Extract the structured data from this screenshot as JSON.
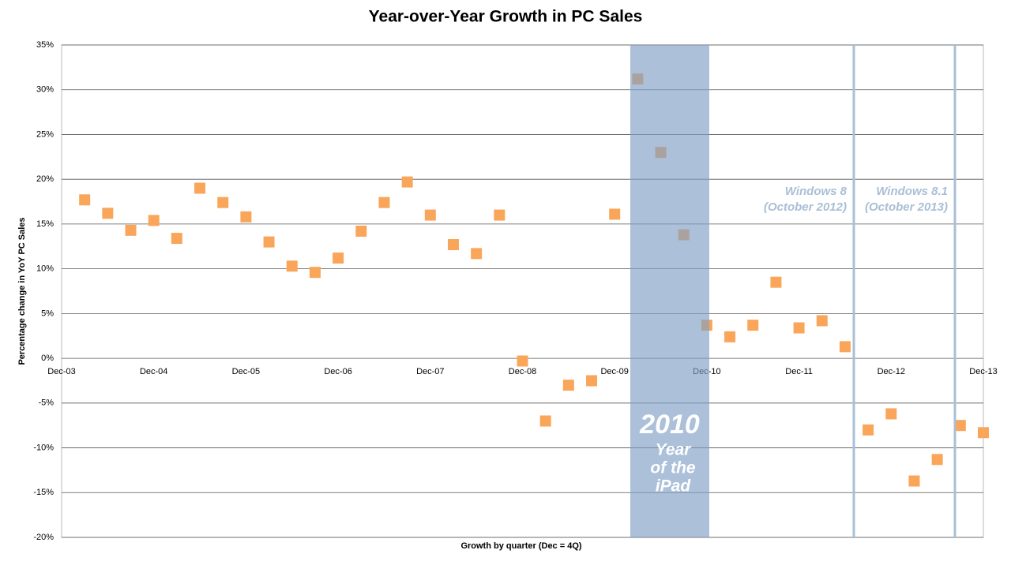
{
  "chart_data": {
    "type": "scatter",
    "title": "Year-over-Year Growth in PC Sales",
    "x_label": "Growth by quarter (Dec = 4Q)",
    "y_label": "Percentage change in YoY PC Sales",
    "categories": [
      "Dec-03",
      null,
      null,
      null,
      "Dec-04",
      null,
      null,
      null,
      "Dec-05",
      null,
      null,
      null,
      "Dec-06",
      null,
      null,
      null,
      "Dec-07",
      null,
      null,
      null,
      "Dec-08",
      null,
      null,
      null,
      "Dec-09",
      null,
      null,
      null,
      "Dec-10",
      null,
      null,
      null,
      "Dec-11",
      null,
      null,
      null,
      "Dec-12",
      null,
      null,
      null,
      "Dec-13"
    ],
    "values": [
      null,
      17.7,
      16.2,
      14.3,
      15.4,
      13.4,
      19.0,
      17.4,
      15.8,
      13.0,
      10.3,
      9.6,
      11.2,
      14.2,
      17.4,
      19.7,
      16.0,
      12.7,
      11.7,
      16.0,
      -0.3,
      -7.0,
      -3.0,
      -2.5,
      16.1,
      31.2,
      23.0,
      13.8,
      3.7,
      2.4,
      3.7,
      8.5,
      3.4,
      4.2,
      1.3,
      -8.0,
      -6.2,
      -13.7,
      -11.3,
      -7.5,
      -8.3
    ],
    "color": "#f9a65a",
    "ylim": [
      -20,
      35
    ],
    "yticks": [
      {
        "value": -20,
        "label": "-20%"
      },
      {
        "value": -15,
        "label": "-15%"
      },
      {
        "value": -10,
        "label": "-10%"
      },
      {
        "value": -5,
        "label": "-5%"
      },
      {
        "value": 0,
        "label": "0%"
      },
      {
        "value": 5,
        "label": "5%"
      },
      {
        "value": 10,
        "label": "10%"
      },
      {
        "value": 15,
        "label": "15%"
      },
      {
        "value": 20,
        "label": "20%"
      },
      {
        "value": 25,
        "label": "25%"
      },
      {
        "value": 30,
        "label": "30%"
      },
      {
        "value": 35,
        "label": "35%"
      }
    ],
    "grid": true,
    "annotations": {
      "ipad": [
        "2010",
        "Year",
        "of the",
        "iPad"
      ],
      "win8": [
        "Windows 8",
        "(October 2012)"
      ],
      "win81": [
        "Windows 8.1",
        "(October 2013)"
      ]
    }
  }
}
